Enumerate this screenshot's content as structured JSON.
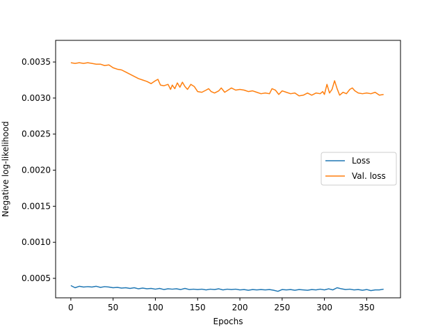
{
  "chart_data": {
    "type": "line",
    "title": "",
    "xlabel": "Epochs",
    "ylabel": "Negative log-likelihood",
    "xlim": [
      -18,
      390
    ],
    "ylim": [
      0.00023,
      0.0038
    ],
    "x_ticks": [
      0,
      50,
      100,
      150,
      200,
      250,
      300,
      350
    ],
    "x_tick_labels": [
      "0",
      "50",
      "100",
      "150",
      "200",
      "250",
      "300",
      "350"
    ],
    "y_ticks": [
      0.0005,
      0.001,
      0.0015,
      0.002,
      0.0025,
      0.003,
      0.0035
    ],
    "y_tick_labels": [
      "0.0005",
      "0.0010",
      "0.0015",
      "0.0020",
      "0.0025",
      "0.0030",
      "0.0035"
    ],
    "grid": false,
    "legend_position": "center-right",
    "series": [
      {
        "name": "Loss",
        "color": "#1f77b4",
        "points": [
          [
            0,
            0.0004
          ],
          [
            5,
            0.00037
          ],
          [
            10,
            0.00039
          ],
          [
            15,
            0.00038
          ],
          [
            20,
            0.000385
          ],
          [
            25,
            0.00038
          ],
          [
            30,
            0.00039
          ],
          [
            35,
            0.000375
          ],
          [
            40,
            0.000385
          ],
          [
            45,
            0.00038
          ],
          [
            50,
            0.00037
          ],
          [
            55,
            0.000375
          ],
          [
            60,
            0.000365
          ],
          [
            65,
            0.00037
          ],
          [
            70,
            0.00036
          ],
          [
            75,
            0.00037
          ],
          [
            80,
            0.000355
          ],
          [
            85,
            0.000365
          ],
          [
            90,
            0.000355
          ],
          [
            95,
            0.00036
          ],
          [
            100,
            0.00035
          ],
          [
            105,
            0.00036
          ],
          [
            110,
            0.000345
          ],
          [
            115,
            0.000355
          ],
          [
            120,
            0.00035
          ],
          [
            125,
            0.000355
          ],
          [
            130,
            0.000345
          ],
          [
            135,
            0.00036
          ],
          [
            140,
            0.000345
          ],
          [
            145,
            0.00035
          ],
          [
            150,
            0.000345
          ],
          [
            155,
            0.00035
          ],
          [
            160,
            0.00034
          ],
          [
            165,
            0.00035
          ],
          [
            170,
            0.000345
          ],
          [
            175,
            0.000355
          ],
          [
            180,
            0.00034
          ],
          [
            185,
            0.00035
          ],
          [
            190,
            0.000345
          ],
          [
            195,
            0.00035
          ],
          [
            200,
            0.00034
          ],
          [
            205,
            0.000345
          ],
          [
            210,
            0.000335
          ],
          [
            215,
            0.000345
          ],
          [
            220,
            0.00034
          ],
          [
            225,
            0.000345
          ],
          [
            230,
            0.00034
          ],
          [
            235,
            0.000345
          ],
          [
            240,
            0.000335
          ],
          [
            245,
            0.00032
          ],
          [
            250,
            0.000345
          ],
          [
            255,
            0.00034
          ],
          [
            260,
            0.000345
          ],
          [
            265,
            0.000335
          ],
          [
            270,
            0.000345
          ],
          [
            275,
            0.00034
          ],
          [
            280,
            0.000335
          ],
          [
            285,
            0.000345
          ],
          [
            290,
            0.00034
          ],
          [
            295,
            0.00035
          ],
          [
            300,
            0.00034
          ],
          [
            305,
            0.000355
          ],
          [
            310,
            0.00034
          ],
          [
            315,
            0.00037
          ],
          [
            320,
            0.000355
          ],
          [
            325,
            0.000345
          ],
          [
            330,
            0.00035
          ],
          [
            335,
            0.00034
          ],
          [
            340,
            0.000345
          ],
          [
            345,
            0.000335
          ],
          [
            350,
            0.000345
          ],
          [
            355,
            0.00033
          ],
          [
            360,
            0.00034
          ],
          [
            365,
            0.00034
          ],
          [
            370,
            0.00035
          ]
        ]
      },
      {
        "name": "Val. loss",
        "color": "#ff7f0e",
        "points": [
          [
            0,
            0.00349
          ],
          [
            5,
            0.00348
          ],
          [
            10,
            0.00349
          ],
          [
            15,
            0.00348
          ],
          [
            20,
            0.00349
          ],
          [
            25,
            0.00348
          ],
          [
            30,
            0.00347
          ],
          [
            35,
            0.00347
          ],
          [
            40,
            0.00345
          ],
          [
            45,
            0.00346
          ],
          [
            50,
            0.00342
          ],
          [
            55,
            0.0034
          ],
          [
            60,
            0.00339
          ],
          [
            65,
            0.00336
          ],
          [
            70,
            0.00333
          ],
          [
            75,
            0.0033
          ],
          [
            80,
            0.00327
          ],
          [
            85,
            0.00325
          ],
          [
            90,
            0.00323
          ],
          [
            95,
            0.0032
          ],
          [
            100,
            0.00324
          ],
          [
            103,
            0.00326
          ],
          [
            106,
            0.00318
          ],
          [
            110,
            0.00317
          ],
          [
            115,
            0.00319
          ],
          [
            118,
            0.00312
          ],
          [
            120,
            0.00318
          ],
          [
            123,
            0.00313
          ],
          [
            126,
            0.00321
          ],
          [
            129,
            0.00315
          ],
          [
            132,
            0.00322
          ],
          [
            135,
            0.00316
          ],
          [
            138,
            0.00312
          ],
          [
            142,
            0.00319
          ],
          [
            146,
            0.00316
          ],
          [
            150,
            0.00309
          ],
          [
            155,
            0.00308
          ],
          [
            160,
            0.00311
          ],
          [
            163,
            0.00313
          ],
          [
            166,
            0.00309
          ],
          [
            170,
            0.00307
          ],
          [
            175,
            0.0031
          ],
          [
            178,
            0.00314
          ],
          [
            182,
            0.00308
          ],
          [
            186,
            0.00311
          ],
          [
            190,
            0.00314
          ],
          [
            195,
            0.00311
          ],
          [
            200,
            0.00312
          ],
          [
            205,
            0.00311
          ],
          [
            210,
            0.00309
          ],
          [
            215,
            0.0031
          ],
          [
            220,
            0.00308
          ],
          [
            225,
            0.00306
          ],
          [
            230,
            0.00307
          ],
          [
            235,
            0.00306
          ],
          [
            238,
            0.00313
          ],
          [
            242,
            0.00311
          ],
          [
            246,
            0.00305
          ],
          [
            250,
            0.0031
          ],
          [
            255,
            0.00308
          ],
          [
            260,
            0.00306
          ],
          [
            265,
            0.00307
          ],
          [
            270,
            0.00303
          ],
          [
            275,
            0.00304
          ],
          [
            280,
            0.00307
          ],
          [
            285,
            0.00304
          ],
          [
            290,
            0.00307
          ],
          [
            295,
            0.00306
          ],
          [
            298,
            0.00309
          ],
          [
            300,
            0.00305
          ],
          [
            303,
            0.00319
          ],
          [
            306,
            0.00307
          ],
          [
            309,
            0.00312
          ],
          [
            312,
            0.00324
          ],
          [
            315,
            0.00313
          ],
          [
            318,
            0.00304
          ],
          [
            322,
            0.00308
          ],
          [
            326,
            0.00306
          ],
          [
            330,
            0.00312
          ],
          [
            333,
            0.00314
          ],
          [
            336,
            0.0031
          ],
          [
            340,
            0.00307
          ],
          [
            345,
            0.00306
          ],
          [
            350,
            0.00307
          ],
          [
            355,
            0.00306
          ],
          [
            360,
            0.00308
          ],
          [
            365,
            0.00304
          ],
          [
            370,
            0.00305
          ]
        ]
      }
    ]
  }
}
